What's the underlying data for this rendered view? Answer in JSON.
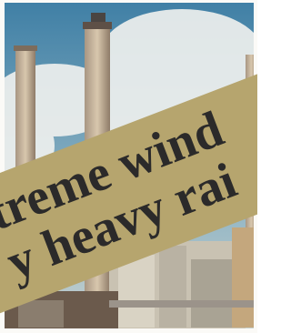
{
  "banner": {
    "lines": [
      "treme wind",
      "y heavy rai"
    ]
  }
}
